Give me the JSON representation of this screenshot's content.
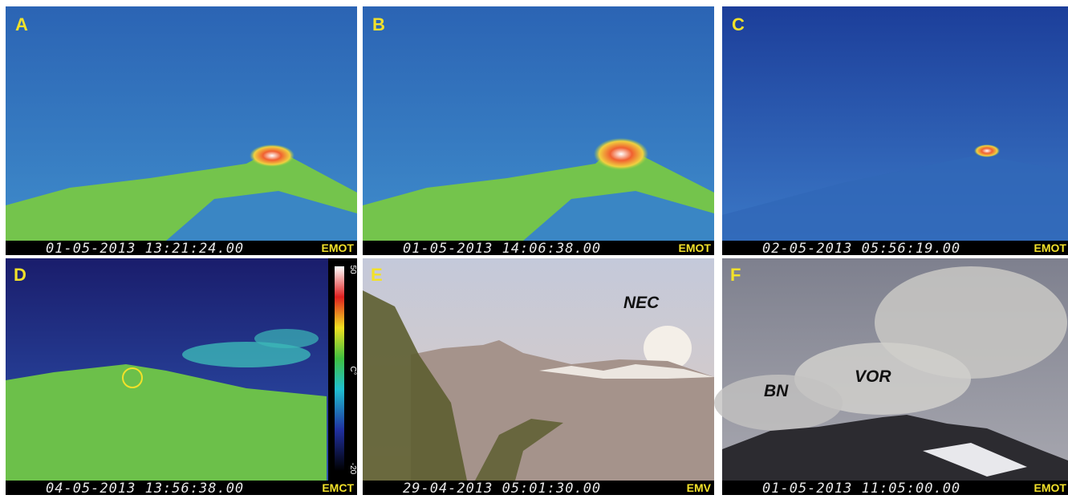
{
  "panels": [
    {
      "letter": "A",
      "timestamp": "01-05-2013 13:21:24.00",
      "camera": "EMOT"
    },
    {
      "letter": "B",
      "timestamp": "01-05-2013 14:06:38.00",
      "camera": "EMOT"
    },
    {
      "letter": "C",
      "timestamp": "02-05-2013 05:56:19.00",
      "camera": "EMOT"
    },
    {
      "letter": "D",
      "timestamp": "04-05-2013 13:56:38.00",
      "camera": "EMCT",
      "colorbar": {
        "max": "50",
        "unit": "C°",
        "min": "-20"
      }
    },
    {
      "letter": "E",
      "timestamp": "29-04-2013 05:01:30.00",
      "camera": "EMV",
      "labels": [
        "NEC"
      ]
    },
    {
      "letter": "F",
      "timestamp": "01-05-2013 11:05:00.00",
      "camera": "EMOT",
      "labels": [
        "BN",
        "VOR"
      ]
    }
  ]
}
